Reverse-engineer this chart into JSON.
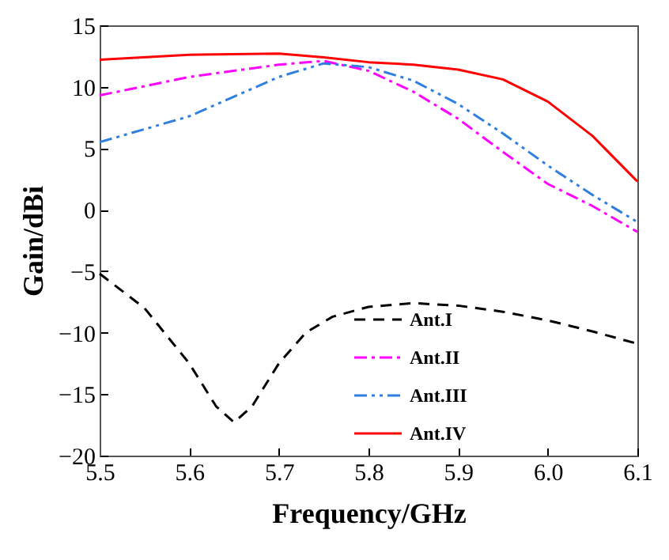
{
  "chart_data": {
    "type": "line",
    "xlabel": "Frequency/GHz",
    "ylabel": "Gain/dBi",
    "xlim": [
      5.5,
      6.1
    ],
    "xticks": [
      5.5,
      5.6,
      5.7,
      5.8,
      5.9,
      {
        "value": 6,
        "label": "6.0"
      },
      6.1
    ],
    "ylim": [
      -20,
      15
    ],
    "yticks": [
      -20,
      -15,
      -10,
      -5,
      0,
      5,
      10,
      15
    ],
    "grid": false,
    "legend": "right",
    "marker": "none",
    "series": [
      {
        "name": "Ant.I",
        "color": "#000000",
        "line_style": "dashed",
        "x": [
          5.5,
          5.55,
          5.6,
          5.63,
          5.65,
          5.67,
          5.7,
          5.73,
          5.76,
          5.8,
          5.85,
          5.9,
          5.95,
          6.0,
          6.05,
          6.1
        ],
        "values": [
          -5.2,
          -8,
          -12.5,
          -16,
          -17.3,
          -16,
          -12.5,
          -10,
          -8.7,
          -7.9,
          -7.6,
          -7.8,
          -8.3,
          -9,
          -9.9,
          -10.9
        ]
      },
      {
        "name": "Ant.II",
        "color": "#ff00ff",
        "line_style": "dashdot",
        "x": [
          5.5,
          5.6,
          5.7,
          5.75,
          5.8,
          5.85,
          5.9,
          5.95,
          6.0,
          6.05,
          6.1
        ],
        "values": [
          9.3,
          10.8,
          11.8,
          12.1,
          11.3,
          9.6,
          7.4,
          4.7,
          2.1,
          0.3,
          -1.8
        ]
      },
      {
        "name": "Ant.III",
        "color": "#2f7fe0",
        "line_style": "dashdotdot",
        "x": [
          5.5,
          5.6,
          5.65,
          5.7,
          5.75,
          5.8,
          5.85,
          5.9,
          5.95,
          6.0,
          6.05,
          6.1
        ],
        "values": [
          5.5,
          7.6,
          9.2,
          10.8,
          11.9,
          11.6,
          10.5,
          8.6,
          6.2,
          3.6,
          1.2,
          -1
        ]
      },
      {
        "name": "Ant.IV",
        "color": "#ff0000",
        "line_style": "solid",
        "x": [
          5.5,
          5.6,
          5.7,
          5.75,
          5.8,
          5.85,
          5.9,
          5.95,
          6.0,
          6.05,
          6.1
        ],
        "values": [
          12.2,
          12.6,
          12.7,
          12.4,
          12,
          11.8,
          11.4,
          10.6,
          8.8,
          6,
          2.3
        ]
      }
    ]
  }
}
